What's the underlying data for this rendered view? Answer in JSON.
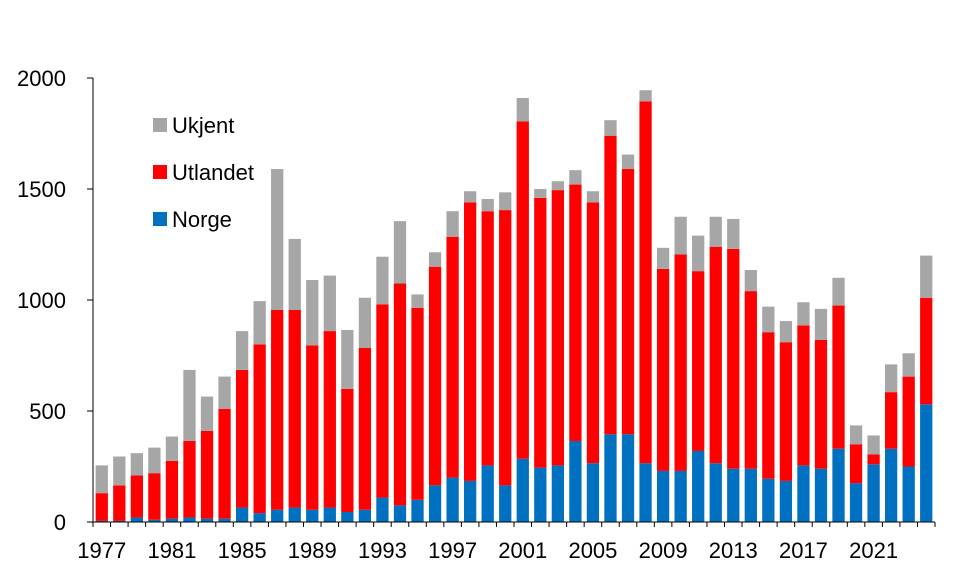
{
  "chart_data": {
    "type": "bar",
    "stacked": true,
    "title": "",
    "xlabel": "",
    "ylabel": "",
    "ylim": [
      0,
      2000
    ],
    "yticks": [
      0,
      500,
      1000,
      1500,
      2000
    ],
    "grid": false,
    "legend_position": "top-left",
    "x": [
      1977,
      1978,
      1979,
      1980,
      1981,
      1982,
      1983,
      1984,
      1985,
      1986,
      1987,
      1988,
      1989,
      1990,
      1991,
      1992,
      1993,
      1994,
      1995,
      1996,
      1997,
      1998,
      1999,
      2000,
      2001,
      2002,
      2003,
      2004,
      2005,
      2006,
      2007,
      2008,
      2009,
      2010,
      2011,
      2012,
      2013,
      2014,
      2015,
      2016,
      2017,
      2018,
      2019,
      2020,
      2021,
      2022,
      2023,
      2024
    ],
    "xtick_labels": [
      "1977",
      "1981",
      "1985",
      "1989",
      "1993",
      "1997",
      "2001",
      "2005",
      "2009",
      "2013",
      "2017",
      "2021"
    ],
    "series": [
      {
        "name": "Norge",
        "color": "#0070C0",
        "values": [
          5,
          5,
          20,
          10,
          15,
          20,
          15,
          15,
          65,
          40,
          55,
          65,
          55,
          65,
          45,
          55,
          110,
          75,
          100,
          165,
          200,
          185,
          255,
          165,
          285,
          245,
          255,
          365,
          265,
          395,
          395,
          265,
          230,
          230,
          320,
          265,
          240,
          240,
          195,
          185,
          255,
          240,
          330,
          175,
          260,
          330,
          250,
          530
        ]
      },
      {
        "name": "Utlandet",
        "color": "#FF0000",
        "values": [
          125,
          160,
          190,
          210,
          260,
          345,
          395,
          495,
          620,
          760,
          900,
          890,
          740,
          795,
          555,
          730,
          870,
          1000,
          865,
          985,
          1085,
          1255,
          1145,
          1240,
          1520,
          1215,
          1240,
          1155,
          1175,
          1345,
          1195,
          1630,
          910,
          975,
          810,
          975,
          990,
          800,
          660,
          625,
          630,
          580,
          645,
          175,
          45,
          255,
          405,
          480
        ]
      },
      {
        "name": "Ukjent",
        "color": "#A6A6A6",
        "values": [
          125,
          130,
          100,
          115,
          110,
          320,
          155,
          145,
          175,
          195,
          635,
          320,
          295,
          250,
          265,
          225,
          215,
          280,
          60,
          65,
          115,
          50,
          55,
          80,
          105,
          40,
          40,
          65,
          50,
          70,
          65,
          50,
          95,
          170,
          160,
          135,
          135,
          95,
          115,
          95,
          105,
          140,
          125,
          85,
          85,
          125,
          105,
          190
        ]
      }
    ]
  }
}
